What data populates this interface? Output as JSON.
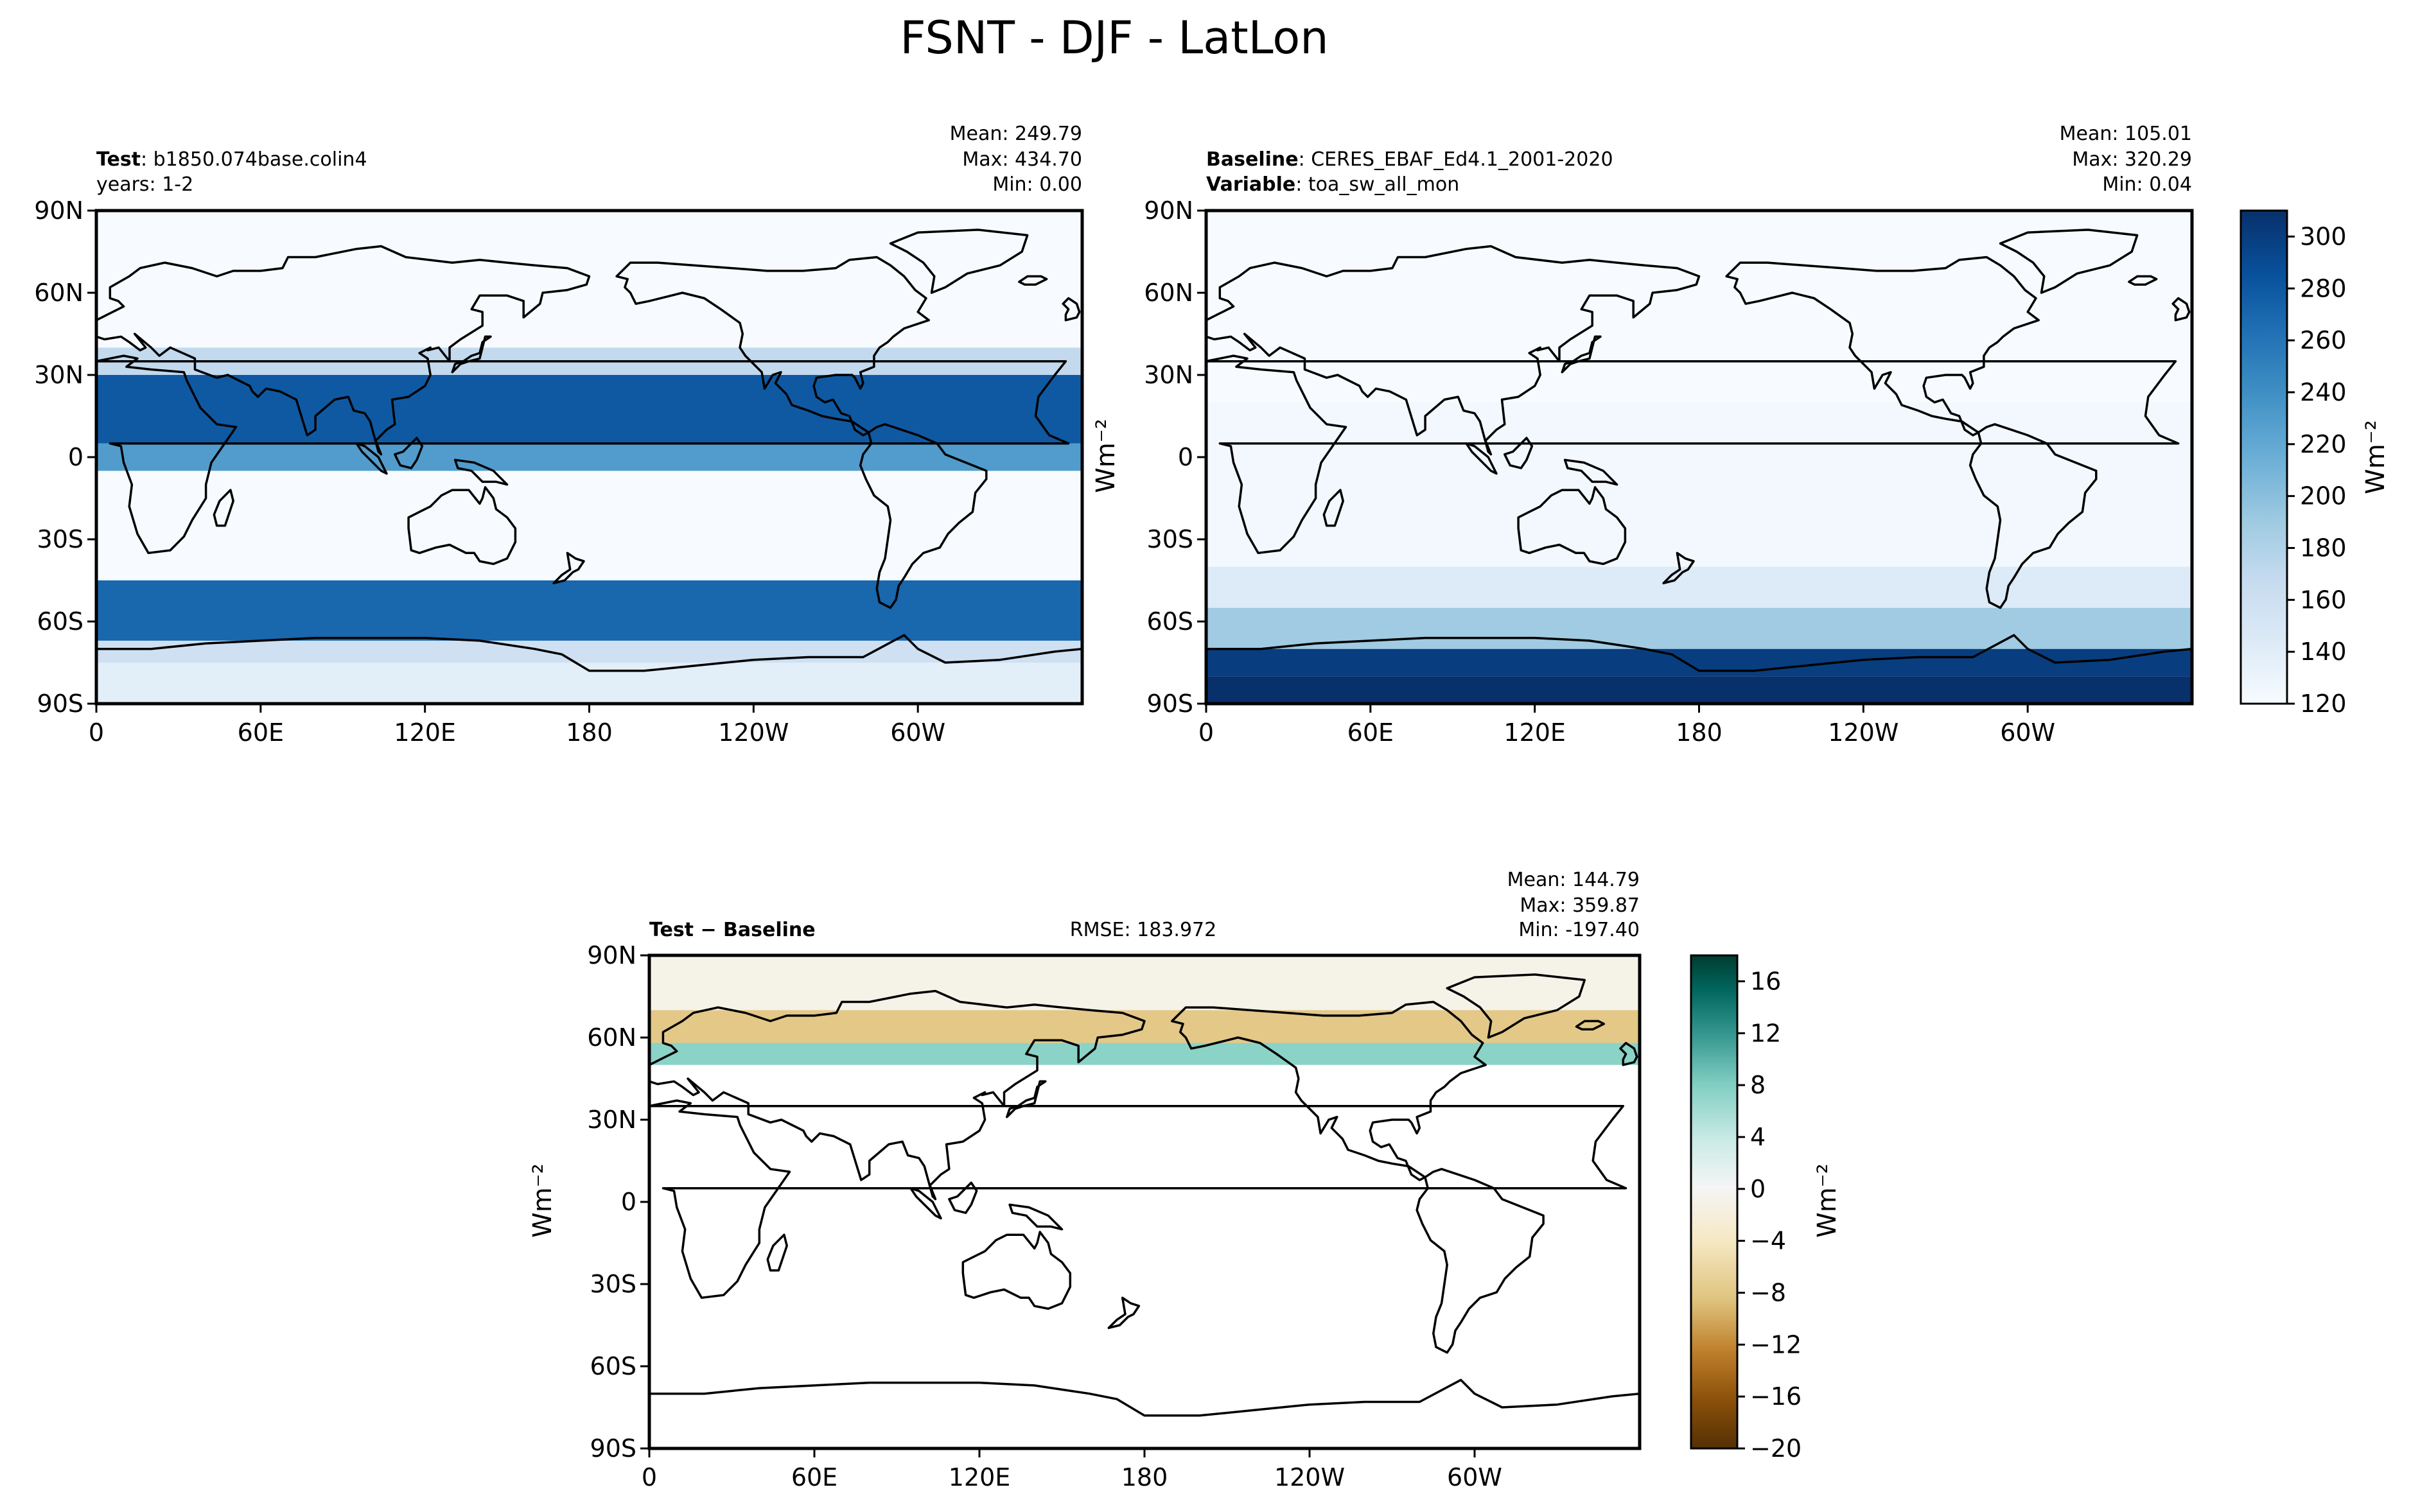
{
  "suptitle": "FSNT - DJF - LatLon",
  "chart_data": [
    {
      "type": "heatmap",
      "panel": "test",
      "left_label_bold": "Test",
      "left_label_rest": ": b1850.074base.colin4",
      "left_label_line2": "years: 1-2",
      "stats": [
        "Mean: 249.79",
        "Max: 434.70",
        "Min:  0.00"
      ],
      "xticks": [
        "0",
        "60E",
        "120E",
        "180",
        "120W",
        "60W"
      ],
      "yticks": [
        "90N",
        "60N",
        "30N",
        "0",
        "30S",
        "60S",
        "90S"
      ],
      "xlim": [
        0,
        360
      ],
      "ylim": [
        -90,
        90
      ],
      "colormap": "Blues",
      "bands": [
        {
          "lat": [
            -90,
            -75
          ],
          "value": 140
        },
        {
          "lat": [
            -75,
            -67
          ],
          "value": 160
        },
        {
          "lat": [
            -67,
            -45
          ],
          "value": 270
        },
        {
          "lat": [
            -45,
            -5
          ],
          "value": 120
        },
        {
          "lat": [
            -5,
            5
          ],
          "value": 230
        },
        {
          "lat": [
            5,
            30
          ],
          "value": 280
        },
        {
          "lat": [
            30,
            40
          ],
          "value": 170
        },
        {
          "lat": [
            40,
            90
          ],
          "value": 120
        }
      ]
    },
    {
      "type": "heatmap",
      "panel": "baseline",
      "left_label_bold": "Baseline",
      "left_label_rest": ": CERES_EBAF_Ed4.1_2001-2020",
      "left_label_bold2": "Variable",
      "left_label_rest2": ": toa_sw_all_mon",
      "stats": [
        "Mean: 105.01",
        "Max: 320.29",
        "Min:  0.04"
      ],
      "xticks": [
        "0",
        "60E",
        "120E",
        "180",
        "120W",
        "60W"
      ],
      "yticks": [
        "90N",
        "60N",
        "30N",
        "0",
        "30S",
        "60S",
        "90S"
      ],
      "xlim": [
        0,
        360
      ],
      "ylim": [
        -90,
        90
      ],
      "colormap": "Blues",
      "bands": [
        {
          "lat": [
            -90,
            -80
          ],
          "value": 310
        },
        {
          "lat": [
            -80,
            -70
          ],
          "value": 300
        },
        {
          "lat": [
            -70,
            -55
          ],
          "value": 190
        },
        {
          "lat": [
            -55,
            -40
          ],
          "value": 145
        },
        {
          "lat": [
            -40,
            20
          ],
          "value": 125
        },
        {
          "lat": [
            20,
            90
          ],
          "value": 120
        }
      ],
      "colorbar": {
        "ticks": [
          120,
          140,
          160,
          180,
          200,
          220,
          240,
          260,
          280,
          300
        ],
        "range": [
          120,
          310
        ],
        "label": "Wm⁻²"
      }
    },
    {
      "type": "heatmap",
      "panel": "difference",
      "left_label_bold": "Test − Baseline",
      "center_label": "RMSE: 183.972",
      "stats": [
        "Mean: 144.79",
        "Max: 359.87",
        "Min: -197.40"
      ],
      "xticks": [
        "0",
        "60E",
        "120E",
        "180",
        "120W",
        "60W"
      ],
      "yticks": [
        "90N",
        "60N",
        "30N",
        "0",
        "30S",
        "60S",
        "90S"
      ],
      "xlim": [
        0,
        360
      ],
      "ylim": [
        -90,
        90
      ],
      "colormap": "BrBG",
      "bands": [
        {
          "lat": [
            70,
            90
          ],
          "value": -2
        },
        {
          "lat": [
            58,
            70
          ],
          "value": -8
        },
        {
          "lat": [
            50,
            58
          ],
          "value": 6
        }
      ],
      "colorbar": {
        "ticks": [
          -20,
          -16,
          -12,
          -8,
          -4,
          0,
          4,
          8,
          12,
          16
        ],
        "range": [
          -20,
          18
        ],
        "label": "Wm⁻²"
      }
    }
  ],
  "ylabel_side": "Wm⁻²",
  "colors": {
    "blues": [
      "#f7fbff",
      "#deebf7",
      "#c6dbef",
      "#9ecae1",
      "#6baed6",
      "#4292c6",
      "#2171b5",
      "#08519c",
      "#08306b"
    ],
    "brbg": [
      "#543005",
      "#8c510a",
      "#bf812d",
      "#dfc27d",
      "#f6e8c3",
      "#f5f5f5",
      "#c7eae5",
      "#80cdc1",
      "#35978f",
      "#01665e",
      "#003c30"
    ]
  }
}
